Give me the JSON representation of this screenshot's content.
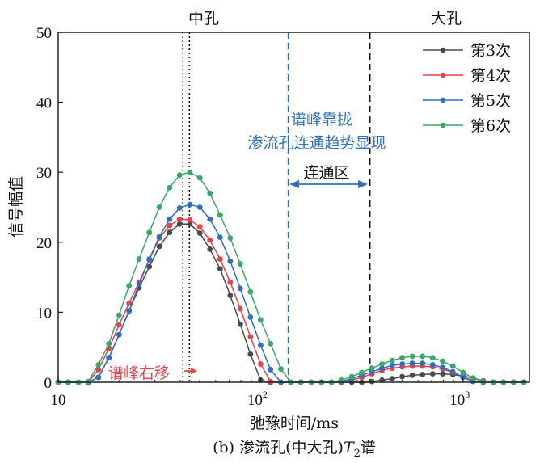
{
  "chart_data": {
    "type": "line",
    "caption": "(b) 渗流孔(中大孔)T2谱",
    "caption_parts": {
      "prefix": "(b) 渗流孔(中大孔)",
      "T": "T",
      "sub": "2",
      "suffix": "谱"
    },
    "xlabel": "弛豫时间/ms",
    "ylabel": "信号幅值",
    "x_scale": "log",
    "xlim": [
      10,
      2130
    ],
    "ylim": [
      0,
      50
    ],
    "grid": false,
    "legend_position": "top-right",
    "x_ticks": [
      {
        "value": 10,
        "label": "10",
        "sup": ""
      },
      {
        "value": 100,
        "label": "10",
        "sup": "2"
      },
      {
        "value": 1000,
        "label": "10",
        "sup": "3"
      }
    ],
    "y_ticks": [
      0,
      10,
      20,
      30,
      40,
      50
    ],
    "x": [
      10,
      11.2,
      12.6,
      14.1,
      15.8,
      17.8,
      20.0,
      22.4,
      25.1,
      28.2,
      31.6,
      35.5,
      39.8,
      44.7,
      50.1,
      56.2,
      63.1,
      70.8,
      79.4,
      89.1,
      100,
      112,
      126,
      141,
      158,
      178,
      200,
      224,
      251,
      282,
      316,
      355,
      398,
      447,
      501,
      562,
      631,
      708,
      794,
      891,
      1000,
      1122,
      1259,
      1413,
      1585,
      1778,
      1995
    ],
    "series": [
      {
        "name": "第3次",
        "color": "#4a4a4a",
        "values": [
          0,
          0,
          0,
          0,
          0.7,
          3.5,
          6.8,
          10.2,
          13.5,
          16.5,
          19.4,
          21.4,
          22.6,
          22.6,
          21.3,
          19.0,
          16.2,
          12.4,
          8.3,
          4.0,
          0.3,
          0,
          0,
          0,
          0,
          0,
          0,
          0,
          0,
          0,
          0,
          0.1,
          0.3,
          0.5,
          0.8,
          1.0,
          1.1,
          1.2,
          1.2,
          1.1,
          0.9,
          0.6,
          0.2,
          0,
          0,
          0,
          0
        ]
      },
      {
        "name": "第4次",
        "color": "#e8414a",
        "values": [
          0,
          0,
          0,
          0,
          1.8,
          4.8,
          8.2,
          11.3,
          14.3,
          17.5,
          20.6,
          22.4,
          23.3,
          23.2,
          22.2,
          20.3,
          17.6,
          14.3,
          10.5,
          6.5,
          2.6,
          0.1,
          0,
          0,
          0,
          0,
          0,
          0,
          0,
          0.3,
          0.7,
          1.2,
          1.7,
          2.0,
          2.2,
          2.3,
          2.3,
          2.2,
          1.9,
          1.4,
          0.8,
          0.2,
          0,
          0,
          0,
          0,
          0
        ]
      },
      {
        "name": "第5次",
        "color": "#2d6fc0",
        "values": [
          0,
          0,
          0,
          0,
          0.7,
          3.5,
          6.8,
          10.2,
          14.0,
          17.6,
          20.8,
          23.3,
          24.9,
          25.4,
          25.0,
          23.3,
          20.7,
          17.3,
          13.4,
          9.3,
          5.3,
          1.8,
          0,
          0,
          0,
          0,
          0,
          0,
          0.1,
          0.5,
          1.0,
          1.5,
          2.0,
          2.4,
          2.6,
          2.7,
          2.7,
          2.5,
          2.1,
          1.5,
          0.7,
          0.1,
          0,
          0,
          0,
          0,
          0
        ]
      },
      {
        "name": "第6次",
        "color": "#3aa86a",
        "values": [
          0,
          0,
          0,
          0.1,
          2.5,
          5.5,
          9.6,
          13.8,
          17.6,
          21.4,
          25.0,
          27.8,
          29.6,
          30.0,
          29.2,
          27.0,
          23.9,
          20.6,
          16.9,
          12.9,
          8.9,
          5.5,
          1.9,
          0,
          0,
          0,
          0,
          0,
          0.3,
          0.8,
          1.4,
          2.0,
          2.6,
          3.1,
          3.5,
          3.7,
          3.7,
          3.5,
          3.0,
          2.3,
          1.4,
          0.6,
          0.1,
          0,
          0,
          0,
          0
        ]
      }
    ],
    "reference_lines": [
      {
        "x": 41.3,
        "style": "dotted",
        "color": "#111111"
      },
      {
        "x": 44.5,
        "style": "dotted",
        "color": "#111111"
      },
      {
        "x": 137,
        "style": "dashed",
        "color": "#2d6fc0"
      },
      {
        "x": 347,
        "style": "dashed",
        "color": "#111111"
      }
    ],
    "annotations": {
      "mid_pore": "中孔",
      "large_pore": "大孔",
      "converge_line1": "谱峰靠拢",
      "converge_line2": "渗流孔连通趋势显现",
      "connect_zone": "连通区",
      "peak_shift": "谱峰右移",
      "blue_color": "#2d6fc0",
      "red_color": "#e8414a"
    }
  }
}
